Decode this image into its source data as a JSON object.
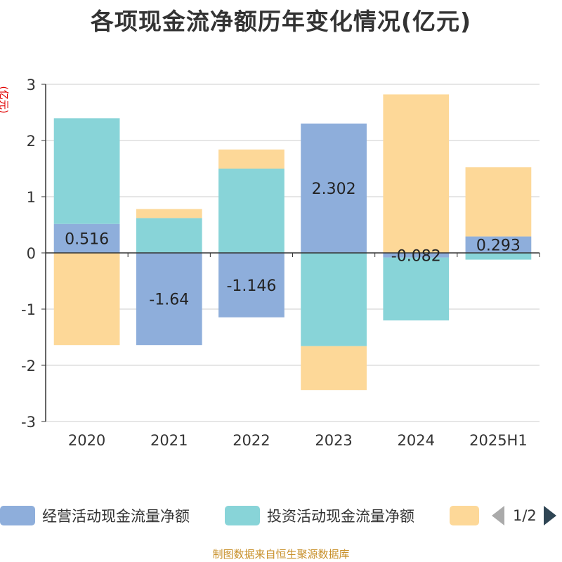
{
  "title": "各项现金流净额历年变化情况(亿元)",
  "source": "制图数据来自恒生聚源数据库",
  "chart_data": {
    "type": "bar",
    "stacked": true,
    "ylabel": "(亿元)",
    "ylim": [
      -3,
      3
    ],
    "yticks": [
      "3",
      "2",
      "1",
      "0",
      "-1",
      "-2",
      "-3"
    ],
    "yticks_values": [
      3,
      2,
      1,
      0,
      -1,
      -2,
      -3
    ],
    "categories": [
      "2020",
      "2021",
      "2022",
      "2023",
      "2024",
      "2025H1"
    ],
    "grid": true,
    "legend_position": "bottom",
    "series": [
      {
        "name": "经营活动现金流量净额",
        "color": "#8eaedb",
        "values": [
          0.516,
          -1.64,
          -1.146,
          2.302,
          -0.082,
          0.293
        ],
        "labels": [
          "0.516",
          "-1.64",
          "-1.146",
          "2.302",
          "-0.082",
          "0.293"
        ]
      },
      {
        "name": "投资活动现金流量净额",
        "color": "#88d4d8",
        "values": [
          1.88,
          0.62,
          1.5,
          -1.66,
          -1.12,
          -0.12
        ]
      },
      {
        "name": "",
        "color": "#fdd898",
        "values": [
          -1.64,
          0.16,
          0.34,
          -0.78,
          2.82,
          1.23
        ]
      }
    ]
  },
  "legend": {
    "items": [
      "经营活动现金流量净额",
      "投资活动现金流量净额",
      ""
    ],
    "page": "1/2"
  }
}
